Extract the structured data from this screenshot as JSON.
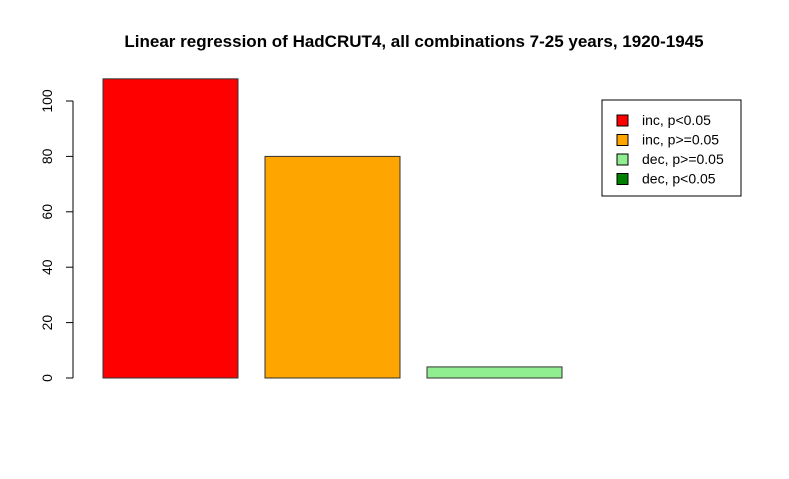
{
  "chart_data": {
    "type": "bar",
    "title": "Linear regression of HadCRUT4, all combinations 7-25 years, 1920-1945",
    "xlabel": "",
    "ylabel": "",
    "categories": [
      "inc, p<0.05",
      "inc, p>=0.05",
      "dec, p>=0.05",
      "dec, p<0.05"
    ],
    "values": [
      108,
      80,
      4,
      0
    ],
    "colors": [
      "#ff0000",
      "#ffa500",
      "#90ee90",
      "#008000"
    ],
    "ylim": [
      0,
      108
    ],
    "yticks": [
      0,
      20,
      40,
      60,
      80,
      100
    ],
    "grid": false,
    "legend_position": "top-right",
    "legend": [
      {
        "label": "inc, p<0.05",
        "color": "#ff0000"
      },
      {
        "label": "inc, p>=0.05",
        "color": "#ffa500"
      },
      {
        "label": "dec, p>=0.05",
        "color": "#90ee90"
      },
      {
        "label": "dec, p<0.05",
        "color": "#008000"
      }
    ]
  }
}
